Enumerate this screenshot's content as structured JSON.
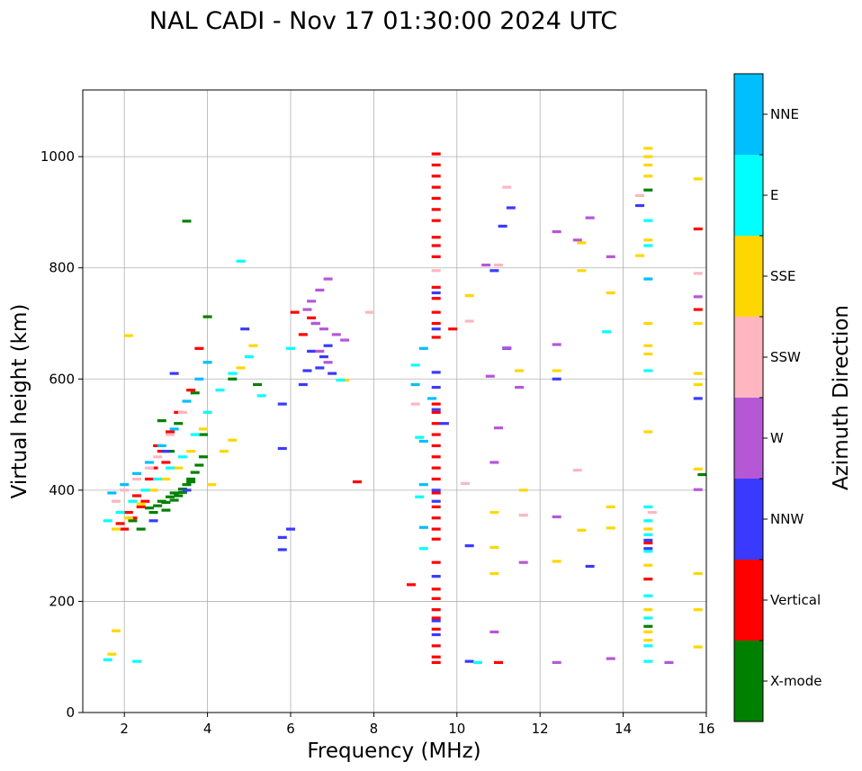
{
  "chart_data": {
    "type": "scatter",
    "title": "NAL CADI - Nov 17 01:30:00 2024 UTC",
    "xlabel": "Frequency (MHz)",
    "ylabel": "Virtual height (km)",
    "xlim": [
      1,
      16
    ],
    "ylim": [
      0,
      1120
    ],
    "xticks": [
      2,
      4,
      6,
      8,
      10,
      12,
      14,
      16
    ],
    "yticks": [
      0,
      200,
      400,
      600,
      800,
      1000
    ],
    "grid": true,
    "colorbar": {
      "label": "Azimuth Direction",
      "categories": [
        {
          "name": "X-mode",
          "color": "#008000"
        },
        {
          "name": "Vertical",
          "color": "#ff0000"
        },
        {
          "name": "NNW",
          "color": "#3a3aff"
        },
        {
          "name": "W",
          "color": "#b657d6"
        },
        {
          "name": "SSW",
          "color": "#ffb6c1"
        },
        {
          "name": "SSE",
          "color": "#ffd700"
        },
        {
          "name": "E",
          "color": "#00ffff"
        },
        {
          "name": "NNE",
          "color": "#00bfff"
        }
      ]
    },
    "series": [
      {
        "name": "X-mode",
        "points": [
          [
            2.7,
            360
          ],
          [
            2.8,
            372
          ],
          [
            2.9,
            380
          ],
          [
            3.0,
            378
          ],
          [
            3.1,
            388
          ],
          [
            3.2,
            395
          ],
          [
            3.3,
            390
          ],
          [
            3.4,
            402
          ],
          [
            3.5,
            410
          ],
          [
            3.6,
            420
          ],
          [
            3.7,
            432
          ],
          [
            3.8,
            445
          ],
          [
            3.9,
            460
          ],
          [
            3.0,
            364
          ],
          [
            3.2,
            382
          ],
          [
            3.4,
            396
          ],
          [
            3.6,
            415
          ],
          [
            2.6,
            368
          ],
          [
            3.1,
            470
          ],
          [
            3.3,
            520
          ],
          [
            3.9,
            500
          ],
          [
            3.5,
            884
          ],
          [
            4.0,
            712
          ],
          [
            2.4,
            330
          ],
          [
            2.2,
            345
          ],
          [
            4.6,
            600
          ],
          [
            5.2,
            590
          ],
          [
            14.6,
            940
          ],
          [
            15.9,
            428
          ],
          [
            14.6,
            155
          ],
          [
            3.7,
            575
          ],
          [
            2.9,
            525
          ]
        ]
      },
      {
        "name": "Vertical",
        "points": [
          [
            2.0,
            330
          ],
          [
            2.2,
            350
          ],
          [
            2.4,
            370
          ],
          [
            2.5,
            380
          ],
          [
            2.6,
            420
          ],
          [
            2.7,
            440
          ],
          [
            2.9,
            470
          ],
          [
            3.1,
            505
          ],
          [
            3.3,
            540
          ],
          [
            3.6,
            580
          ],
          [
            3.8,
            655
          ],
          [
            1.9,
            340
          ],
          [
            2.1,
            360
          ],
          [
            2.3,
            390
          ],
          [
            2.8,
            480
          ],
          [
            3.0,
            450
          ],
          [
            6.1,
            720
          ],
          [
            6.3,
            680
          ],
          [
            6.5,
            710
          ],
          [
            7.6,
            415
          ],
          [
            8.9,
            230
          ],
          [
            9.5,
            1005
          ],
          [
            9.5,
            985
          ],
          [
            9.5,
            965
          ],
          [
            9.5,
            945
          ],
          [
            9.5,
            925
          ],
          [
            9.5,
            905
          ],
          [
            9.5,
            885
          ],
          [
            9.5,
            855
          ],
          [
            9.5,
            840
          ],
          [
            9.5,
            820
          ],
          [
            9.5,
            765
          ],
          [
            9.5,
            745
          ],
          [
            9.5,
            720
          ],
          [
            9.5,
            700
          ],
          [
            9.5,
            675
          ],
          [
            9.5,
            555
          ],
          [
            9.5,
            540
          ],
          [
            9.5,
            520
          ],
          [
            9.5,
            500
          ],
          [
            9.5,
            480
          ],
          [
            9.5,
            460
          ],
          [
            9.5,
            440
          ],
          [
            9.5,
            420
          ],
          [
            9.5,
            395
          ],
          [
            9.5,
            370
          ],
          [
            9.5,
            350
          ],
          [
            9.5,
            330
          ],
          [
            9.5,
            312
          ],
          [
            9.5,
            270
          ],
          [
            9.5,
            222
          ],
          [
            9.5,
            205
          ],
          [
            9.5,
            185
          ],
          [
            9.5,
            170
          ],
          [
            9.5,
            150
          ],
          [
            9.5,
            120
          ],
          [
            9.5,
            90
          ],
          [
            9.5,
            100
          ],
          [
            9.9,
            690
          ],
          [
            11.0,
            90
          ],
          [
            14.6,
            240
          ],
          [
            14.6,
            305
          ],
          [
            15.8,
            870
          ],
          [
            15.8,
            725
          ]
        ]
      },
      {
        "name": "NNW",
        "points": [
          [
            2.7,
            345
          ],
          [
            3.0,
            470
          ],
          [
            3.2,
            610
          ],
          [
            3.5,
            400
          ],
          [
            4.9,
            690
          ],
          [
            5.8,
            555
          ],
          [
            5.8,
            315
          ],
          [
            5.8,
            293
          ],
          [
            5.8,
            475
          ],
          [
            6.0,
            330
          ],
          [
            6.4,
            615
          ],
          [
            6.5,
            650
          ],
          [
            6.6,
            700
          ],
          [
            6.7,
            620
          ],
          [
            6.9,
            660
          ],
          [
            7.0,
            610
          ],
          [
            6.3,
            590
          ],
          [
            6.8,
            640
          ],
          [
            9.5,
            755
          ],
          [
            9.5,
            690
          ],
          [
            9.5,
            612
          ],
          [
            9.5,
            585
          ],
          [
            9.5,
            545
          ],
          [
            9.5,
            400
          ],
          [
            9.5,
            380
          ],
          [
            9.5,
            165
          ],
          [
            9.5,
            140
          ],
          [
            9.5,
            245
          ],
          [
            9.7,
            520
          ],
          [
            10.3,
            300
          ],
          [
            10.3,
            92
          ],
          [
            10.9,
            795
          ],
          [
            11.1,
            875
          ],
          [
            11.3,
            908
          ],
          [
            11.2,
            655
          ],
          [
            12.4,
            600
          ],
          [
            13.2,
            263
          ],
          [
            14.4,
            912
          ],
          [
            14.6,
            295
          ],
          [
            14.6,
            310
          ],
          [
            15.8,
            565
          ]
        ]
      },
      {
        "name": "W",
        "points": [
          [
            6.5,
            740
          ],
          [
            6.7,
            760
          ],
          [
            6.9,
            780
          ],
          [
            6.6,
            700
          ],
          [
            6.8,
            690
          ],
          [
            7.1,
            680
          ],
          [
            7.3,
            670
          ],
          [
            6.4,
            725
          ],
          [
            6.7,
            650
          ],
          [
            6.9,
            630
          ],
          [
            10.7,
            805
          ],
          [
            10.8,
            605
          ],
          [
            10.9,
            450
          ],
          [
            10.9,
            145
          ],
          [
            11.0,
            512
          ],
          [
            11.2,
            656
          ],
          [
            11.5,
            585
          ],
          [
            11.6,
            270
          ],
          [
            12.4,
            865
          ],
          [
            12.4,
            662
          ],
          [
            12.4,
            352
          ],
          [
            12.4,
            90
          ],
          [
            12.9,
            850
          ],
          [
            13.2,
            890
          ],
          [
            13.7,
            820
          ],
          [
            13.7,
            97
          ],
          [
            15.1,
            90
          ],
          [
            15.8,
            748
          ],
          [
            15.8,
            401
          ]
        ]
      },
      {
        "name": "SSW",
        "points": [
          [
            1.8,
            380
          ],
          [
            2.0,
            400
          ],
          [
            2.3,
            420
          ],
          [
            2.6,
            440
          ],
          [
            2.8,
            460
          ],
          [
            3.1,
            500
          ],
          [
            3.4,
            540
          ],
          [
            7.9,
            720
          ],
          [
            9.0,
            555
          ],
          [
            9.5,
            795
          ],
          [
            10.2,
            412
          ],
          [
            10.3,
            704
          ],
          [
            11.0,
            805
          ],
          [
            11.2,
            945
          ],
          [
            11.6,
            355
          ],
          [
            12.9,
            436
          ],
          [
            14.4,
            930
          ],
          [
            14.7,
            360
          ],
          [
            15.8,
            790
          ]
        ]
      },
      {
        "name": "SSE",
        "points": [
          [
            1.8,
            330
          ],
          [
            2.1,
            350
          ],
          [
            2.4,
            375
          ],
          [
            2.7,
            400
          ],
          [
            3.0,
            420
          ],
          [
            3.3,
            440
          ],
          [
            3.6,
            470
          ],
          [
            3.9,
            510
          ],
          [
            4.1,
            410
          ],
          [
            4.4,
            470
          ],
          [
            4.6,
            490
          ],
          [
            4.8,
            620
          ],
          [
            5.1,
            660
          ],
          [
            2.1,
            678
          ],
          [
            1.8,
            147
          ],
          [
            1.7,
            105
          ],
          [
            7.3,
            598
          ],
          [
            10.3,
            750
          ],
          [
            10.9,
            360
          ],
          [
            10.9,
            297
          ],
          [
            10.9,
            250
          ],
          [
            11.5,
            615
          ],
          [
            11.6,
            400
          ],
          [
            12.4,
            615
          ],
          [
            12.4,
            272
          ],
          [
            13.0,
            795
          ],
          [
            13.0,
            328
          ],
          [
            13.0,
            845
          ],
          [
            13.7,
            755
          ],
          [
            13.7,
            370
          ],
          [
            13.7,
            332
          ],
          [
            14.4,
            822
          ],
          [
            14.6,
            1015
          ],
          [
            14.6,
            1000
          ],
          [
            14.6,
            985
          ],
          [
            14.6,
            965
          ],
          [
            14.6,
            850
          ],
          [
            14.6,
            700
          ],
          [
            14.6,
            660
          ],
          [
            14.6,
            645
          ],
          [
            14.6,
            505
          ],
          [
            14.6,
            330
          ],
          [
            14.6,
            265
          ],
          [
            14.6,
            185
          ],
          [
            14.6,
            145
          ],
          [
            14.6,
            130
          ],
          [
            15.8,
            960
          ],
          [
            15.8,
            700
          ],
          [
            15.8,
            610
          ],
          [
            15.8,
            590
          ],
          [
            15.8,
            438
          ],
          [
            15.8,
            250
          ],
          [
            15.8,
            185
          ],
          [
            15.8,
            118
          ]
        ]
      },
      {
        "name": "E",
        "points": [
          [
            1.6,
            345
          ],
          [
            1.9,
            360
          ],
          [
            2.2,
            380
          ],
          [
            2.5,
            400
          ],
          [
            2.8,
            420
          ],
          [
            3.1,
            440
          ],
          [
            3.4,
            460
          ],
          [
            3.7,
            500
          ],
          [
            4.0,
            540
          ],
          [
            4.3,
            580
          ],
          [
            4.6,
            610
          ],
          [
            5.0,
            640
          ],
          [
            4.8,
            812
          ],
          [
            5.3,
            570
          ],
          [
            1.6,
            95
          ],
          [
            2.3,
            92
          ],
          [
            6.0,
            655
          ],
          [
            7.2,
            598
          ],
          [
            9.0,
            625
          ],
          [
            9.1,
            495
          ],
          [
            9.1,
            388
          ],
          [
            9.2,
            295
          ],
          [
            10.5,
            90
          ],
          [
            13.6,
            685
          ],
          [
            14.6,
            885
          ],
          [
            14.6,
            840
          ],
          [
            14.6,
            615
          ],
          [
            14.6,
            370
          ],
          [
            14.6,
            345
          ],
          [
            14.6,
            320
          ],
          [
            14.6,
            290
          ],
          [
            14.6,
            210
          ],
          [
            14.6,
            170
          ],
          [
            14.6,
            120
          ],
          [
            14.6,
            92
          ]
        ]
      },
      {
        "name": "NNE",
        "points": [
          [
            1.7,
            395
          ],
          [
            2.0,
            410
          ],
          [
            2.3,
            430
          ],
          [
            2.6,
            450
          ],
          [
            2.9,
            480
          ],
          [
            3.2,
            510
          ],
          [
            3.5,
            560
          ],
          [
            3.8,
            600
          ],
          [
            4.0,
            630
          ],
          [
            9.0,
            590
          ],
          [
            9.2,
            655
          ],
          [
            9.2,
            488
          ],
          [
            9.2,
            410
          ],
          [
            9.2,
            333
          ],
          [
            9.4,
            565
          ],
          [
            14.6,
            780
          ]
        ]
      }
    ]
  }
}
